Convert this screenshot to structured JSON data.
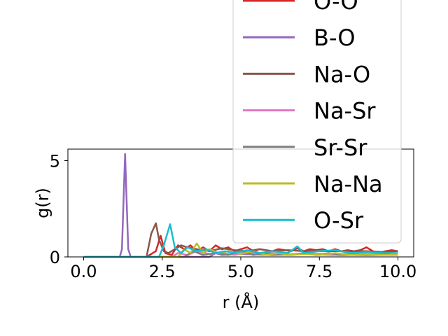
{
  "chart_data": {
    "type": "line",
    "title": "",
    "xlabel": "r (Å)",
    "ylabel": "g(r)",
    "xlim": [
      -0.5,
      10.5
    ],
    "ylim": [
      0,
      5.6
    ],
    "xticks": [
      0.0,
      2.5,
      5.0,
      7.5,
      10.0
    ],
    "xtick_labels": [
      "0.0",
      "2.5",
      "5.0",
      "7.5",
      "10.0"
    ],
    "yticks": [
      0,
      5
    ],
    "ytick_labels": [
      "0",
      "5"
    ],
    "legend_position": "top-right",
    "series": [
      {
        "name": "O-O",
        "color": "#d62728",
        "x": [
          0,
          1,
          2,
          2.3,
          2.45,
          2.6,
          2.8,
          3.0,
          3.2,
          3.4,
          3.6,
          3.8,
          4.0,
          4.2,
          4.4,
          4.6,
          4.8,
          5.0,
          5.2,
          5.4,
          5.6,
          5.8,
          6.0,
          6.2,
          6.4,
          6.6,
          6.8,
          7.0,
          7.2,
          7.4,
          7.6,
          7.8,
          8.0,
          8.2,
          8.4,
          8.6,
          8.8,
          9.0,
          9.2,
          9.4,
          9.6,
          9.8,
          10.0
        ],
        "y": [
          0,
          0,
          0,
          0.3,
          1.1,
          0.2,
          0.1,
          0.6,
          0.4,
          0.6,
          0.3,
          0.5,
          0.3,
          0.6,
          0.4,
          0.5,
          0.3,
          0.4,
          0.5,
          0.3,
          0.4,
          0.35,
          0.3,
          0.4,
          0.35,
          0.3,
          0.45,
          0.3,
          0.4,
          0.35,
          0.4,
          0.3,
          0.4,
          0.3,
          0.35,
          0.3,
          0.35,
          0.5,
          0.3,
          0.2,
          0.3,
          0.35,
          0.3
        ]
      },
      {
        "name": "B-O",
        "color": "#9467bd",
        "x": [
          0,
          1.15,
          1.22,
          1.32,
          1.42,
          1.5,
          2,
          3,
          4,
          4.2,
          4.4,
          5,
          6,
          7,
          8,
          9,
          10
        ],
        "y": [
          0,
          0,
          0.4,
          5.35,
          0.4,
          0,
          0,
          0,
          0,
          0.2,
          0.1,
          0.15,
          0.1,
          0.15,
          0.1,
          0.1,
          0.1
        ]
      },
      {
        "name": "Na-O",
        "color": "#8c564b",
        "x": [
          0,
          2.0,
          2.15,
          2.3,
          2.4,
          2.55,
          2.7,
          2.9,
          3.1,
          3.3,
          3.6,
          4.0,
          4.4,
          4.8,
          5.2,
          5.6,
          6.0,
          6.5,
          7.0,
          7.5,
          8.0,
          8.5,
          9.0,
          9.5,
          10.0
        ],
        "y": [
          0,
          0,
          1.2,
          1.75,
          0.9,
          0.3,
          0.2,
          0.4,
          0.6,
          0.5,
          0.4,
          0.3,
          0.45,
          0.35,
          0.3,
          0.4,
          0.3,
          0.35,
          0.3,
          0.3,
          0.3,
          0.3,
          0.3,
          0.25,
          0.3
        ]
      },
      {
        "name": "Na-Sr",
        "color": "#e377c2",
        "x": [
          0,
          2.8,
          3.0,
          3.3,
          3.6,
          4.0,
          4.4,
          4.8,
          5.2,
          5.6,
          6.0,
          6.5,
          7.0,
          7.5,
          8.0,
          8.5,
          9.0,
          9.5,
          10.0
        ],
        "y": [
          0,
          0,
          0.2,
          0.1,
          0.3,
          0.15,
          0.2,
          0.1,
          0.25,
          0.15,
          0.2,
          0.1,
          0.2,
          0.15,
          0.1,
          0.2,
          0.15,
          0.1,
          0.1
        ]
      },
      {
        "name": "Sr-Sr",
        "color": "#7f7f7f",
        "x": [
          0,
          3.2,
          3.5,
          3.8,
          4.2,
          4.6,
          5.0,
          5.4,
          5.8,
          6.2,
          6.6,
          7.0,
          7.4,
          7.8,
          8.2,
          8.6,
          9.0,
          9.4,
          9.8,
          10.0
        ],
        "y": [
          0,
          0,
          0.3,
          0.1,
          0.2,
          0.1,
          0.3,
          0.1,
          0.2,
          0.15,
          0.1,
          0.2,
          0.1,
          0.2,
          0.1,
          0.15,
          0.1,
          0.2,
          0.1,
          0.1
        ]
      },
      {
        "name": "Na-Na",
        "color": "#bcbd22",
        "x": [
          0,
          3.0,
          3.2,
          3.4,
          3.6,
          3.8,
          4.0,
          4.3,
          4.6,
          5.0,
          5.4,
          5.8,
          6.2,
          6.6,
          7.0,
          7.5,
          8.0,
          8.5,
          9.0,
          9.5,
          10.0
        ],
        "y": [
          0,
          0,
          0.4,
          0.2,
          0.7,
          0.2,
          0.4,
          0.2,
          0.3,
          0.15,
          0.3,
          0.1,
          0.2,
          0.1,
          0.15,
          0.1,
          0.2,
          0.1,
          0.15,
          0.1,
          0.1
        ]
      },
      {
        "name": "O-Sr",
        "color": "#17becf",
        "x": [
          0,
          2.4,
          2.55,
          2.75,
          2.9,
          3.1,
          3.3,
          3.6,
          3.9,
          4.2,
          4.5,
          4.8,
          5.2,
          5.6,
          6.0,
          6.5,
          6.8,
          7.0,
          7.5,
          8.0,
          8.5,
          9.0,
          9.5,
          10.0
        ],
        "y": [
          0,
          0,
          0.6,
          1.7,
          0.5,
          0.2,
          0.5,
          0.3,
          0.4,
          0.2,
          0.3,
          0.2,
          0.35,
          0.2,
          0.3,
          0.2,
          0.55,
          0.2,
          0.3,
          0.35,
          0.2,
          0.25,
          0.2,
          0.2
        ]
      }
    ]
  }
}
